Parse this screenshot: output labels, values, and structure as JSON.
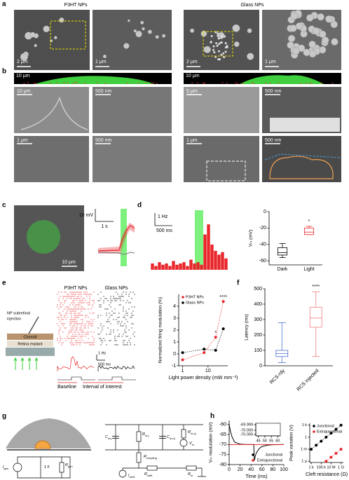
{
  "panels": {
    "letters": [
      "a",
      "b",
      "c",
      "d",
      "e",
      "f",
      "g",
      "h"
    ],
    "a": {
      "titles": [
        "P3HT NPs",
        "Glass NPs"
      ],
      "scale_bars": [
        "2 μm",
        "1 μm",
        "2 μm",
        "1 μm"
      ]
    },
    "b": {
      "strip_scale_bars": [
        "10 μm",
        "10 μm"
      ],
      "scale_bars": [
        "10 μm",
        "500 nm",
        "5 μm",
        "500 nm",
        "1 μm",
        "500 nm",
        "1 μm",
        "500 nm"
      ]
    },
    "c": {
      "image_scale_bar": "10 μm",
      "trace_scale_bars": [
        "10 mV",
        "1 s"
      ]
    },
    "e": {
      "injection": [
        "NP subretinal",
        "injection"
      ],
      "layers": [
        "Choroid",
        "Retina explant"
      ],
      "raster_titles": [
        "P3HT NPs",
        "Glass NPs"
      ],
      "psth_scale_bars": [
        "1 Hz",
        "500 ms"
      ],
      "intervals": [
        "Baseline",
        "Interval of interest"
      ]
    },
    "g": {
      "circuit": [
        {
          "main": "I",
          "sub": "gen"
        },
        {
          "main": "1 F"
        },
        {
          "main": "R",
          "sub": "gen"
        },
        {
          "main": "C",
          "sub": "m,j"
        },
        {
          "main": "R",
          "sub": "m,j"
        },
        {
          "main": "C",
          "sub": "m,nj"
        },
        {
          "main": "R",
          "sub": "m,nj"
        },
        {
          "main": "V",
          "sub": "m"
        },
        {
          "main": "R",
          "sub": "coupling"
        },
        {
          "main": "R",
          "sub": "cleft"
        },
        {
          "main": "R",
          "sub": "el"
        },
        {
          "main": "I",
          "sub": "cleft"
        }
      ]
    }
  },
  "chart_data": [
    {
      "type": "histogram",
      "bins": [
        0,
        100,
        200,
        300,
        400,
        500,
        600,
        700,
        800,
        900,
        1000,
        1100,
        1200,
        1300,
        1400,
        1500,
        1600,
        1700,
        1800,
        1900,
        2000,
        2100,
        2200
      ],
      "values": [
        0.5,
        0.3,
        0.6,
        0.4,
        0.5,
        0.3,
        0.7,
        0.4,
        0.5,
        0.6,
        0.3,
        0.8,
        0.5,
        0.6,
        0.4,
        2.8,
        3.6,
        2.0,
        1.5,
        1.2,
        1.4,
        0.9
      ],
      "color": "#e8262b",
      "stimulus": [
        1260,
        1500
      ],
      "stimulus_color": "#7df07d",
      "yscale": {
        "value": 1,
        "label": "1 Hz"
      },
      "xscale": {
        "value": 500,
        "label": "500 ms"
      }
    },
    {
      "type": "box",
      "ylabel": "Vₘ (mV)",
      "categories": [
        "Dark",
        "Light"
      ],
      "colors": [
        "#000000",
        "#e8262b"
      ],
      "boxes": [
        {
          "min": -56,
          "q1": -53,
          "median": -50,
          "q3": -44,
          "max": -39
        },
        {
          "min": -28,
          "q1": -28,
          "median": -25,
          "q3": -20,
          "max": -18
        }
      ],
      "ylim": [
        -65,
        0
      ],
      "yticks": [
        0,
        -20,
        -40,
        -60
      ],
      "annotations": [
        "*"
      ]
    },
    {
      "type": "scatter",
      "xlabel": "Light power density (mW mm⁻²)",
      "ylabel": "Normalized firing modulation (%)",
      "x": [
        1,
        7,
        20,
        40
      ],
      "series": [
        {
          "name": "P3HT NPs",
          "color": "#e8262b",
          "values": [
            -0.5,
            0.1,
            1.4,
            4.4
          ]
        },
        {
          "name": "Glass NPs",
          "color": "#000000",
          "values": [
            0.1,
            0.4,
            0.3,
            2.1
          ]
        }
      ],
      "log_x": true,
      "xlim": [
        0.7,
        60
      ],
      "xticks": [
        1,
        10
      ],
      "ylim": [
        -1,
        5
      ],
      "yticks": [
        -1,
        0,
        1,
        2,
        3,
        4
      ],
      "legend": "upper left",
      "annotations": [
        "*",
        "****"
      ]
    },
    {
      "type": "box",
      "ylabel": "Latency (ms)",
      "categories": [
        "RCS-rdy",
        "RCS injected"
      ],
      "colors": [
        "#4a6fd0",
        "#f08080"
      ],
      "boxes": [
        {
          "min": 20,
          "q1": 60,
          "median": 80,
          "q3": 100,
          "max": 280
        },
        {
          "min": 60,
          "q1": 250,
          "median": 310,
          "q3": 380,
          "max": 480
        }
      ],
      "ylim": [
        0,
        500
      ],
      "yticks": [
        0,
        100,
        200,
        300,
        400,
        500
      ],
      "annotations": [
        "****"
      ]
    },
    {
      "type": "line",
      "xlabel": "Time (ms)",
      "ylabel": "Vₘ modulation (mV)",
      "x": [
        0,
        2,
        5,
        10,
        20,
        30,
        40,
        45,
        46,
        48,
        50,
        55,
        60,
        70,
        80,
        100
      ],
      "series": [
        {
          "name": "Junctional",
          "color": "#000000",
          "values": [
            -60,
            -63,
            -66,
            -68.8,
            -69.8,
            -70,
            -70,
            -70,
            -78,
            -75.5,
            -74,
            -72,
            -71,
            -70.3,
            -70.1,
            -70
          ]
        },
        {
          "name": "Extrajunctional",
          "color": "#e8262b",
          "values": [
            -70,
            -70,
            -70,
            -70,
            -70,
            -70,
            -70,
            -70,
            -70,
            -70,
            -70,
            -70,
            -70,
            -70,
            -70,
            -70
          ]
        }
      ],
      "xlim": [
        0,
        100
      ],
      "xticks": [
        0,
        20,
        40,
        60,
        80,
        100
      ],
      "ylim": [
        -80,
        -58
      ],
      "yticks": [
        -80,
        -75,
        -70,
        -65,
        -60
      ],
      "legend": "lower right",
      "inset": {
        "ylim": [
          -70.0006,
          -69.9988
        ],
        "yticks": [
          -69.999,
          {
            "value": -69.9998,
            "label": "-70.000"
          },
          {
            "value": -70.0004,
            "label": "-70.000"
          }
        ],
        "xlim": [
          43,
          62
        ],
        "xticks": [
          45,
          50,
          55,
          60
        ]
      }
    },
    {
      "type": "scatter",
      "xlabel": "Cleft resistance (Ω)",
      "ylabel": "Peak variation (V)",
      "x": [
        1000,
        10000,
        100000,
        1000000,
        10000000,
        100000000,
        1000000000
      ],
      "series": [
        {
          "name": "Junctional",
          "color": "#000000",
          "values": [
            0.001,
            0.01,
            0.1,
            1,
            10,
            100,
            1000
          ]
        },
        {
          "name": "Extrajunctional",
          "color": "#e8262b",
          "values": [
            null,
            null,
            null,
            1e-06,
            1e-05,
            0.0001,
            0.001
          ]
        }
      ],
      "log_x": true,
      "log_y": true,
      "xlim": [
        500,
        3000000000
      ],
      "xticks": [
        {
          "value": 1000,
          "label": "1 k"
        },
        {
          "value": 100000,
          "label": "100 k"
        },
        {
          "value": 10000000,
          "label": "10 M"
        },
        {
          "value": 1000000000,
          "label": "1 G"
        }
      ],
      "ylim": [
        5e-07,
        3000
      ],
      "yticks": [
        {
          "value": 1000,
          "label": "1 k"
        },
        1,
        {
          "value": 0.001,
          "label": "1 m"
        },
        {
          "value": 1e-06,
          "label": "1 μ"
        }
      ],
      "legend": "upper left"
    }
  ]
}
